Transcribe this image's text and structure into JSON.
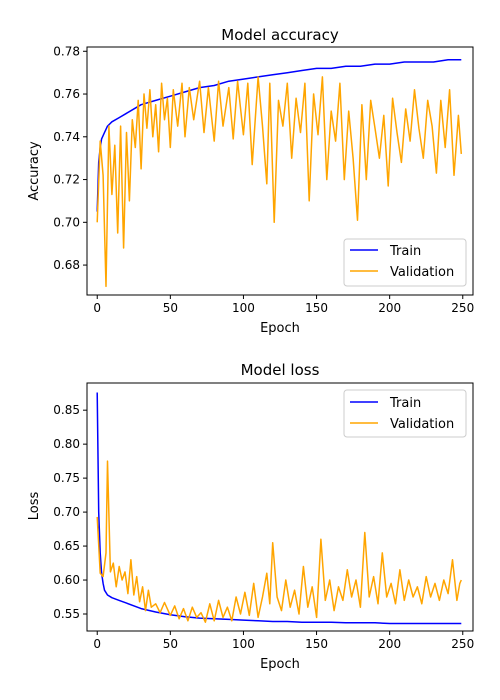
{
  "chart_data": [
    {
      "type": "line",
      "title": "Model accuracy",
      "xlabel": "Epoch",
      "ylabel": "Accuracy",
      "xlim": [
        -7,
        257
      ],
      "ylim": [
        0.666,
        0.782
      ],
      "xticks": [
        0,
        50,
        100,
        150,
        200,
        250
      ],
      "yticks": [
        0.68,
        0.7,
        0.72,
        0.74,
        0.76,
        0.78
      ],
      "ytick_labels": [
        "0.68",
        "0.70",
        "0.72",
        "0.74",
        "0.76",
        "0.78"
      ],
      "grid": false,
      "legend": "bottom-right",
      "series": [
        {
          "name": "Train",
          "color": "#0000ff",
          "points": [
            [
              0,
              0.705
            ],
            [
              1,
              0.728
            ],
            [
              2,
              0.735
            ],
            [
              3,
              0.739
            ],
            [
              5,
              0.742
            ],
            [
              7,
              0.745
            ],
            [
              10,
              0.747
            ],
            [
              15,
              0.749
            ],
            [
              20,
              0.751
            ],
            [
              30,
              0.755
            ],
            [
              40,
              0.757
            ],
            [
              50,
              0.759
            ],
            [
              60,
              0.761
            ],
            [
              70,
              0.763
            ],
            [
              80,
              0.764
            ],
            [
              90,
              0.766
            ],
            [
              100,
              0.767
            ],
            [
              110,
              0.768
            ],
            [
              120,
              0.769
            ],
            [
              130,
              0.77
            ],
            [
              140,
              0.771
            ],
            [
              150,
              0.772
            ],
            [
              160,
              0.772
            ],
            [
              170,
              0.773
            ],
            [
              180,
              0.773
            ],
            [
              190,
              0.774
            ],
            [
              200,
              0.774
            ],
            [
              210,
              0.775
            ],
            [
              220,
              0.775
            ],
            [
              230,
              0.775
            ],
            [
              240,
              0.776
            ],
            [
              249,
              0.776
            ]
          ]
        },
        {
          "name": "Validation",
          "color": "#ffa500",
          "points": [
            [
              0,
              0.7
            ],
            [
              2,
              0.738
            ],
            [
              4,
              0.722
            ],
            [
              6,
              0.67
            ],
            [
              8,
              0.745
            ],
            [
              10,
              0.713
            ],
            [
              12,
              0.736
            ],
            [
              14,
              0.695
            ],
            [
              16,
              0.745
            ],
            [
              18,
              0.688
            ],
            [
              20,
              0.742
            ],
            [
              22,
              0.71
            ],
            [
              24,
              0.748
            ],
            [
              26,
              0.735
            ],
            [
              28,
              0.757
            ],
            [
              30,
              0.725
            ],
            [
              32,
              0.76
            ],
            [
              34,
              0.744
            ],
            [
              36,
              0.762
            ],
            [
              38,
              0.74
            ],
            [
              40,
              0.755
            ],
            [
              42,
              0.733
            ],
            [
              44,
              0.765
            ],
            [
              46,
              0.748
            ],
            [
              48,
              0.758
            ],
            [
              50,
              0.735
            ],
            [
              52,
              0.762
            ],
            [
              55,
              0.745
            ],
            [
              58,
              0.765
            ],
            [
              60,
              0.74
            ],
            [
              63,
              0.763
            ],
            [
              66,
              0.748
            ],
            [
              70,
              0.766
            ],
            [
              73,
              0.742
            ],
            [
              76,
              0.763
            ],
            [
              80,
              0.738
            ],
            [
              83,
              0.766
            ],
            [
              86,
              0.745
            ],
            [
              90,
              0.763
            ],
            [
              93,
              0.739
            ],
            [
              96,
              0.766
            ],
            [
              100,
              0.741
            ],
            [
              103,
              0.765
            ],
            [
              106,
              0.727
            ],
            [
              110,
              0.768
            ],
            [
              113,
              0.745
            ],
            [
              116,
              0.718
            ],
            [
              118,
              0.765
            ],
            [
              121,
              0.7
            ],
            [
              124,
              0.757
            ],
            [
              127,
              0.745
            ],
            [
              130,
              0.765
            ],
            [
              133,
              0.73
            ],
            [
              136,
              0.758
            ],
            [
              139,
              0.742
            ],
            [
              142,
              0.765
            ],
            [
              145,
              0.71
            ],
            [
              148,
              0.76
            ],
            [
              151,
              0.741
            ],
            [
              154,
              0.768
            ],
            [
              157,
              0.72
            ],
            [
              160,
              0.752
            ],
            [
              163,
              0.738
            ],
            [
              166,
              0.765
            ],
            [
              169,
              0.72
            ],
            [
              172,
              0.752
            ],
            [
              175,
              0.73
            ],
            [
              178,
              0.701
            ],
            [
              181,
              0.755
            ],
            [
              184,
              0.72
            ],
            [
              187,
              0.757
            ],
            [
              190,
              0.744
            ],
            [
              193,
              0.73
            ],
            [
              196,
              0.75
            ],
            [
              199,
              0.717
            ],
            [
              202,
              0.758
            ],
            [
              205,
              0.742
            ],
            [
              208,
              0.728
            ],
            [
              211,
              0.753
            ],
            [
              214,
              0.738
            ],
            [
              217,
              0.762
            ],
            [
              220,
              0.744
            ],
            [
              223,
              0.73
            ],
            [
              226,
              0.757
            ],
            [
              229,
              0.745
            ],
            [
              232,
              0.723
            ],
            [
              235,
              0.757
            ],
            [
              238,
              0.735
            ],
            [
              241,
              0.762
            ],
            [
              244,
              0.722
            ],
            [
              247,
              0.75
            ],
            [
              249,
              0.732
            ]
          ]
        }
      ]
    },
    {
      "type": "line",
      "title": "Model loss",
      "xlabel": "Epoch",
      "ylabel": "Loss",
      "xlim": [
        -7,
        257
      ],
      "ylim": [
        0.525,
        0.89
      ],
      "xticks": [
        0,
        50,
        100,
        150,
        200,
        250
      ],
      "yticks": [
        0.55,
        0.6,
        0.65,
        0.7,
        0.75,
        0.8,
        0.85
      ],
      "ytick_labels": [
        "0.55",
        "0.60",
        "0.65",
        "0.70",
        "0.75",
        "0.80",
        "0.85"
      ],
      "grid": false,
      "legend": "top-right",
      "series": [
        {
          "name": "Train",
          "color": "#0000ff",
          "points": [
            [
              0,
              0.876
            ],
            [
              1,
              0.7
            ],
            [
              2,
              0.64
            ],
            [
              3,
              0.61
            ],
            [
              4,
              0.595
            ],
            [
              5,
              0.585
            ],
            [
              7,
              0.578
            ],
            [
              10,
              0.574
            ],
            [
              15,
              0.57
            ],
            [
              20,
              0.566
            ],
            [
              30,
              0.558
            ],
            [
              40,
              0.553
            ],
            [
              50,
              0.549
            ],
            [
              60,
              0.546
            ],
            [
              70,
              0.544
            ],
            [
              80,
              0.543
            ],
            [
              90,
              0.542
            ],
            [
              100,
              0.541
            ],
            [
              110,
              0.54
            ],
            [
              120,
              0.539
            ],
            [
              130,
              0.539
            ],
            [
              140,
              0.538
            ],
            [
              150,
              0.538
            ],
            [
              160,
              0.538
            ],
            [
              170,
              0.537
            ],
            [
              180,
              0.537
            ],
            [
              190,
              0.537
            ],
            [
              200,
              0.536
            ],
            [
              210,
              0.536
            ],
            [
              220,
              0.536
            ],
            [
              230,
              0.536
            ],
            [
              240,
              0.536
            ],
            [
              249,
              0.536
            ]
          ]
        },
        {
          "name": "Validation",
          "color": "#ffa500",
          "points": [
            [
              0,
              0.693
            ],
            [
              2,
              0.61
            ],
            [
              4,
              0.605
            ],
            [
              6,
              0.64
            ],
            [
              7,
              0.775
            ],
            [
              9,
              0.612
            ],
            [
              11,
              0.625
            ],
            [
              13,
              0.59
            ],
            [
              15,
              0.62
            ],
            [
              17,
              0.6
            ],
            [
              19,
              0.612
            ],
            [
              21,
              0.58
            ],
            [
              23,
              0.63
            ],
            [
              25,
              0.578
            ],
            [
              27,
              0.605
            ],
            [
              29,
              0.568
            ],
            [
              31,
              0.59
            ],
            [
              33,
              0.555
            ],
            [
              35,
              0.585
            ],
            [
              37,
              0.56
            ],
            [
              40,
              0.565
            ],
            [
              43,
              0.552
            ],
            [
              46,
              0.567
            ],
            [
              50,
              0.548
            ],
            [
              53,
              0.562
            ],
            [
              56,
              0.543
            ],
            [
              59,
              0.558
            ],
            [
              62,
              0.54
            ],
            [
              65,
              0.56
            ],
            [
              68,
              0.545
            ],
            [
              71,
              0.552
            ],
            [
              74,
              0.538
            ],
            [
              77,
              0.565
            ],
            [
              80,
              0.54
            ],
            [
              83,
              0.57
            ],
            [
              86,
              0.545
            ],
            [
              89,
              0.56
            ],
            [
              92,
              0.54
            ],
            [
              95,
              0.575
            ],
            [
              98,
              0.55
            ],
            [
              101,
              0.582
            ],
            [
              104,
              0.548
            ],
            [
              107,
              0.595
            ],
            [
              110,
              0.545
            ],
            [
              113,
              0.575
            ],
            [
              116,
              0.61
            ],
            [
              118,
              0.565
            ],
            [
              120,
              0.655
            ],
            [
              123,
              0.575
            ],
            [
              126,
              0.555
            ],
            [
              129,
              0.6
            ],
            [
              132,
              0.56
            ],
            [
              135,
              0.585
            ],
            [
              138,
              0.55
            ],
            [
              141,
              0.62
            ],
            [
              144,
              0.56
            ],
            [
              147,
              0.59
            ],
            [
              150,
              0.545
            ],
            [
              153,
              0.66
            ],
            [
              156,
              0.57
            ],
            [
              159,
              0.6
            ],
            [
              162,
              0.555
            ],
            [
              165,
              0.59
            ],
            [
              168,
              0.57
            ],
            [
              171,
              0.615
            ],
            [
              174,
              0.575
            ],
            [
              177,
              0.6
            ],
            [
              180,
              0.56
            ],
            [
              183,
              0.67
            ],
            [
              186,
              0.575
            ],
            [
              189,
              0.605
            ],
            [
              192,
              0.565
            ],
            [
              195,
              0.64
            ],
            [
              198,
              0.575
            ],
            [
              201,
              0.595
            ],
            [
              204,
              0.565
            ],
            [
              207,
              0.615
            ],
            [
              210,
              0.57
            ],
            [
              213,
              0.6
            ],
            [
              216,
              0.575
            ],
            [
              219,
              0.59
            ],
            [
              222,
              0.565
            ],
            [
              225,
              0.605
            ],
            [
              228,
              0.575
            ],
            [
              231,
              0.595
            ],
            [
              234,
              0.57
            ],
            [
              237,
              0.6
            ],
            [
              240,
              0.58
            ],
            [
              243,
              0.63
            ],
            [
              246,
              0.57
            ],
            [
              248,
              0.595
            ],
            [
              249,
              0.6
            ]
          ]
        }
      ]
    }
  ]
}
